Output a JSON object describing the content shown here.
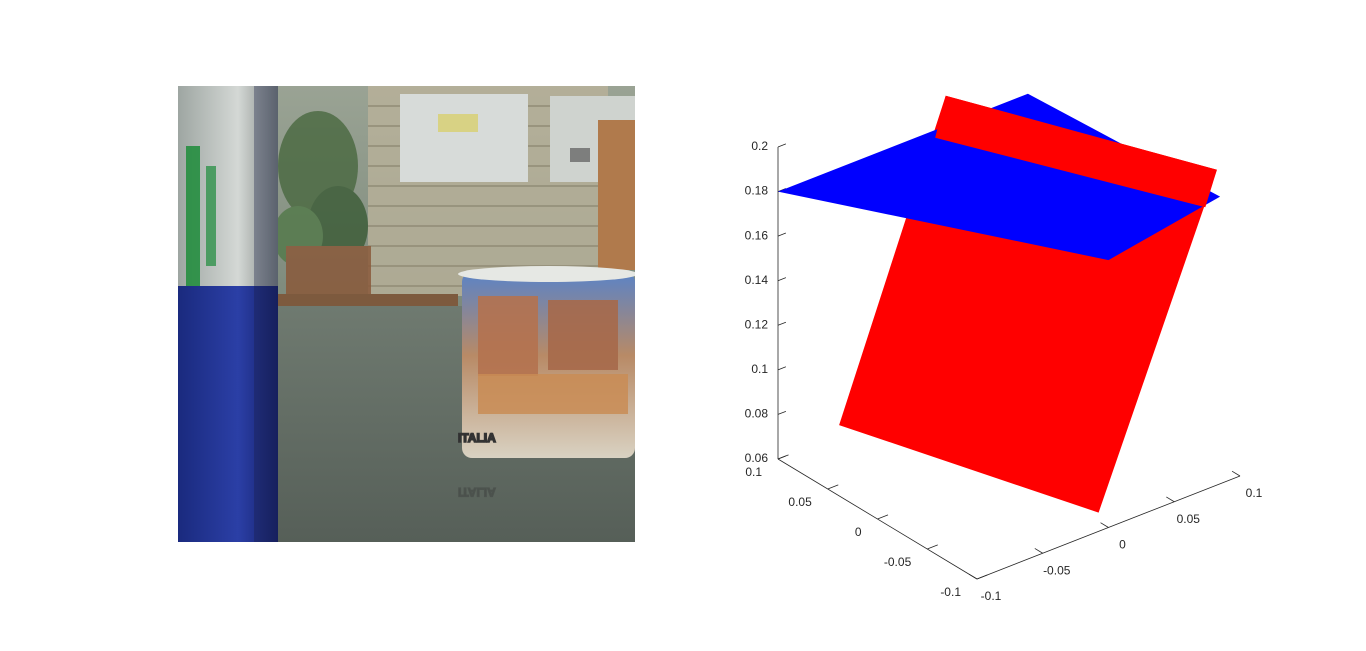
{
  "photo": {
    "icon": "photo-image",
    "mug_text": "ITALIA",
    "mug_text_reflection": "ITALIA",
    "colors": {
      "wall": "#8c9a8a",
      "table": "#7a8478",
      "pen_blue": "#1e2f8c",
      "pen_silver": "#c5c9c6",
      "logo_green": "#1d8c3a"
    }
  },
  "chart_data": {
    "type": "3d-surface",
    "title": "",
    "xlabel": "",
    "ylabel": "",
    "zlabel": "",
    "xlim": [
      -0.1,
      0.1
    ],
    "ylim": [
      -0.1,
      0.1
    ],
    "zlim": [
      0.06,
      0.2
    ],
    "x_ticks": [
      -0.1,
      -0.05,
      0,
      0.05,
      0.1
    ],
    "x_tick_labels": [
      "-0.1",
      "-0.05",
      "0",
      "0.05",
      "0.1"
    ],
    "y_ticks": [
      -0.1,
      -0.05,
      0,
      0.05,
      0.1
    ],
    "y_tick_labels": [
      "-0.1",
      "-0.05",
      "0",
      "0.05",
      "0.1"
    ],
    "z_ticks": [
      0.06,
      0.08,
      0.1,
      0.12,
      0.14,
      0.16,
      0.18,
      0.2
    ],
    "z_tick_labels": [
      "0.06",
      "0.08",
      "0.1",
      "0.12",
      "0.14",
      "0.16",
      "0.18",
      "0.2"
    ],
    "grid": false,
    "series": [
      {
        "color": "#ff0000",
        "surface": "vertical",
        "corners": [
          [
            -0.08,
            0.065,
            0.08
          ],
          [
            -0.0,
            -0.09,
            0.064
          ],
          [
            0.09,
            -0.09,
            0.197
          ],
          [
            0.02,
            0.09,
            0.198
          ]
        ]
      },
      {
        "color": "#0000ff",
        "surface": "horizontal",
        "corners": [
          [
            -0.1,
            0.1,
            0.18
          ],
          [
            0.0,
            -0.1,
            0.18
          ],
          [
            0.1,
            -0.08,
            0.18
          ],
          [
            0.09,
            0.1,
            0.18
          ]
        ]
      }
    ]
  }
}
